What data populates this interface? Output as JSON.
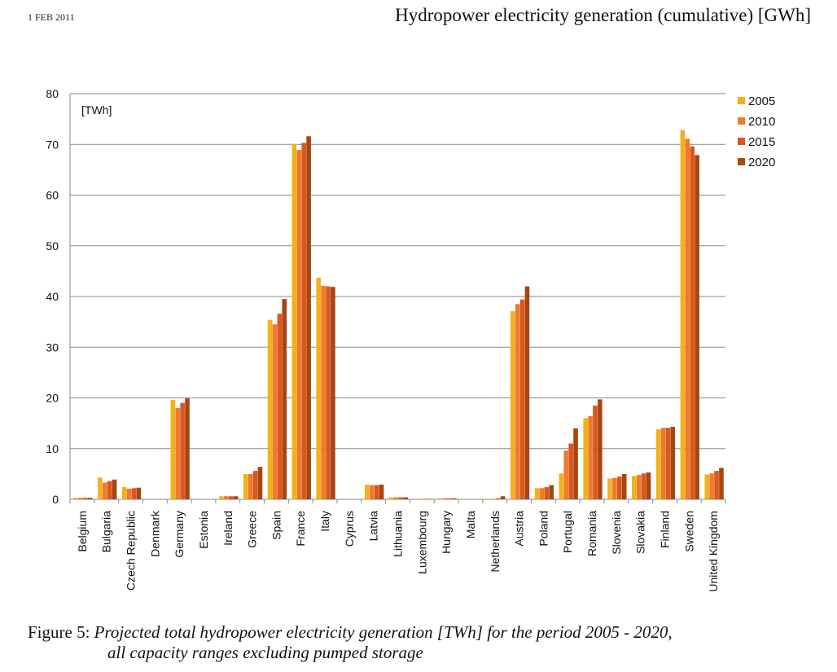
{
  "header": {
    "date": "1 FEB 2011",
    "title": "Hydropower electricity generation (cumulative) [GWh]"
  },
  "caption": {
    "label": "Figure 5:",
    "line1": "Projected total hydropower electricity generation [TWh] for the period 2005 - 2020,",
    "line2": "all capacity ranges excluding pumped storage"
  },
  "chart_data": {
    "type": "bar",
    "unit_label": "[TWh]",
    "ylim": [
      0,
      80
    ],
    "yticks": [
      0,
      10,
      20,
      30,
      40,
      50,
      60,
      70,
      80
    ],
    "grid": true,
    "legend_position": "right",
    "categories": [
      "Belgium",
      "Bulgaria",
      "Czech Republic",
      "Denmark",
      "Germany",
      "Estonia",
      "Ireland",
      "Greece",
      "Spain",
      "France",
      "Italy",
      "Cyprus",
      "Latvia",
      "Lithuania",
      "Luxembourg",
      "Hungary",
      "Malta",
      "Netherlands",
      "Austria",
      "Poland",
      "Portugal",
      "Romania",
      "Slovenia",
      "Slovakia",
      "Finland",
      "Sweden",
      "United Kingdom"
    ],
    "series": [
      {
        "name": "2005",
        "color": "#f2b219",
        "values": [
          0.3,
          4.3,
          2.4,
          0.0,
          19.6,
          0.0,
          0.6,
          5.0,
          35.4,
          70.1,
          43.7,
          0.0,
          2.9,
          0.4,
          0.1,
          0.2,
          0.0,
          0.1,
          37.1,
          2.2,
          5.1,
          16.0,
          4.1,
          4.6,
          13.8,
          72.8,
          4.9
        ]
      },
      {
        "name": "2010",
        "color": "#ef7a2e",
        "values": [
          0.3,
          3.3,
          2.1,
          0.0,
          18.0,
          0.0,
          0.6,
          5.0,
          34.5,
          68.9,
          42.1,
          0.0,
          2.8,
          0.4,
          0.1,
          0.2,
          0.0,
          0.1,
          38.5,
          2.2,
          9.6,
          16.4,
          4.2,
          4.8,
          14.1,
          71.1,
          5.1
        ]
      },
      {
        "name": "2015",
        "color": "#d9571e",
        "values": [
          0.3,
          3.6,
          2.2,
          0.0,
          19.0,
          0.0,
          0.6,
          5.6,
          36.6,
          70.3,
          42.0,
          0.0,
          2.8,
          0.4,
          0.1,
          0.2,
          0.0,
          0.2,
          39.4,
          2.4,
          11.0,
          18.5,
          4.5,
          5.1,
          14.1,
          69.6,
          5.6
        ]
      },
      {
        "name": "2020",
        "color": "#a9450f",
        "values": [
          0.3,
          3.9,
          2.3,
          0.0,
          19.9,
          0.0,
          0.6,
          6.4,
          39.5,
          71.6,
          41.9,
          0.0,
          2.9,
          0.4,
          0.1,
          0.2,
          0.0,
          0.6,
          42.0,
          2.8,
          14.0,
          19.7,
          5.0,
          5.3,
          14.3,
          67.9,
          6.2
        ]
      }
    ]
  }
}
